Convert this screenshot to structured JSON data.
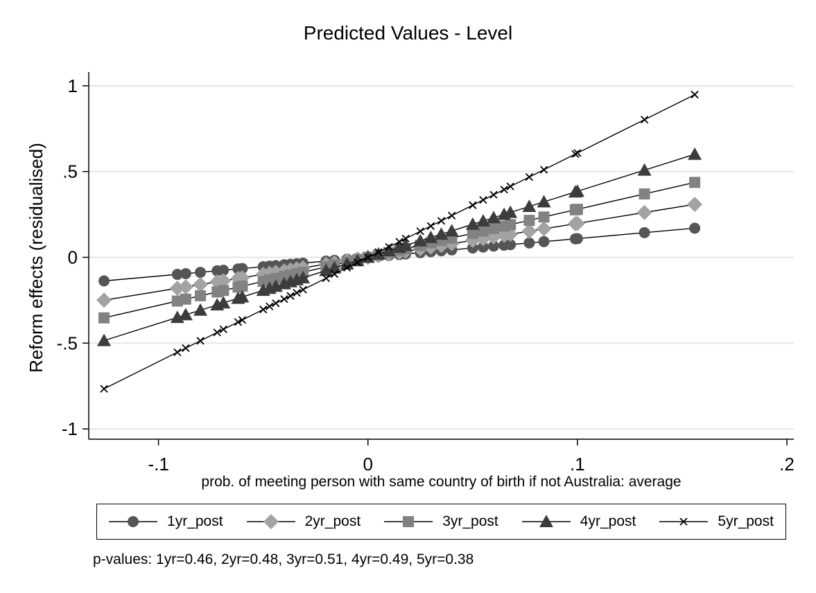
{
  "chart_data": {
    "type": "line",
    "title": "Predicted Values - Level",
    "xlabel": "prob. of meeting person with same country of birth if not Australia: average",
    "ylabel": "Reform effects (residualised)",
    "xlim": [
      -0.1333,
      0.2033
    ],
    "ylim": [
      -1.06,
      1.08
    ],
    "xticks": [
      -0.1,
      0,
      0.1,
      0.2
    ],
    "xtick_labels": [
      "-.1",
      "0",
      ".1",
      ".2"
    ],
    "yticks": [
      -1,
      -0.5,
      0,
      0.5,
      1
    ],
    "ytick_labels": [
      "-1",
      "-.5",
      "0",
      ".5",
      "1"
    ],
    "grid": "horizontal",
    "legend_position": "bottom",
    "x": [
      -0.126,
      -0.091,
      -0.087,
      -0.08,
      -0.072,
      -0.069,
      -0.062,
      -0.06,
      -0.05,
      -0.047,
      -0.044,
      -0.04,
      -0.037,
      -0.034,
      -0.031,
      -0.02,
      -0.016,
      -0.01,
      -0.005,
      0.0,
      0.005,
      0.01,
      0.015,
      0.018,
      0.025,
      0.03,
      0.035,
      0.04,
      0.05,
      0.055,
      0.06,
      0.065,
      0.068,
      0.077,
      0.084,
      0.099,
      0.1,
      0.132,
      0.156
    ],
    "series": [
      {
        "name": "1yr_post",
        "marker": "circle",
        "color": "#555555",
        "slope": 1.09
      },
      {
        "name": "2yr_post",
        "marker": "diamond",
        "color": "#a3a3a3",
        "slope": 1.98
      },
      {
        "name": "3yr_post",
        "marker": "square",
        "color": "#828282",
        "slope": 2.8
      },
      {
        "name": "4yr_post",
        "marker": "triangle",
        "color": "#3c3c3c",
        "slope": 3.85
      },
      {
        "name": "5yr_post",
        "marker": "x",
        "color": "#000000",
        "slope": 6.08
      }
    ],
    "note": "p-values: 1yr=0.46,  2yr=0.48,  3yr=0.51,  4yr=0.49,  5yr=0.38"
  }
}
